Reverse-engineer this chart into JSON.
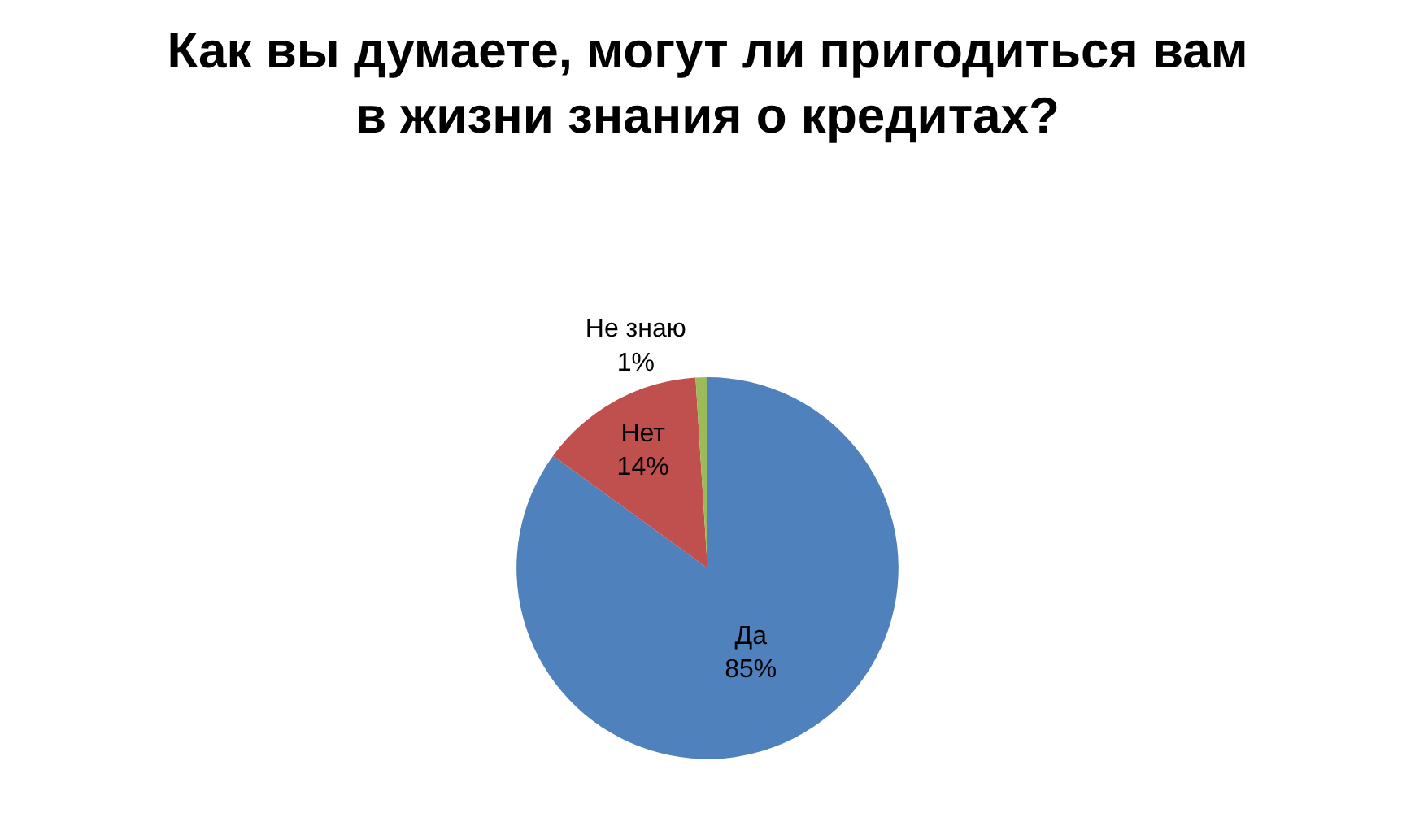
{
  "chart_data": {
    "type": "pie",
    "title": "Как вы думаете, могут ли пригодиться вам в жизни знания о кредитах?",
    "categories": [
      "Да",
      "Нет",
      "Не знаю"
    ],
    "values": [
      85,
      14,
      1
    ],
    "value_labels": [
      "85%",
      "14%",
      "1%"
    ],
    "colors": [
      "#4f81bd",
      "#c0504d",
      "#9bbb59"
    ],
    "legend": false
  }
}
